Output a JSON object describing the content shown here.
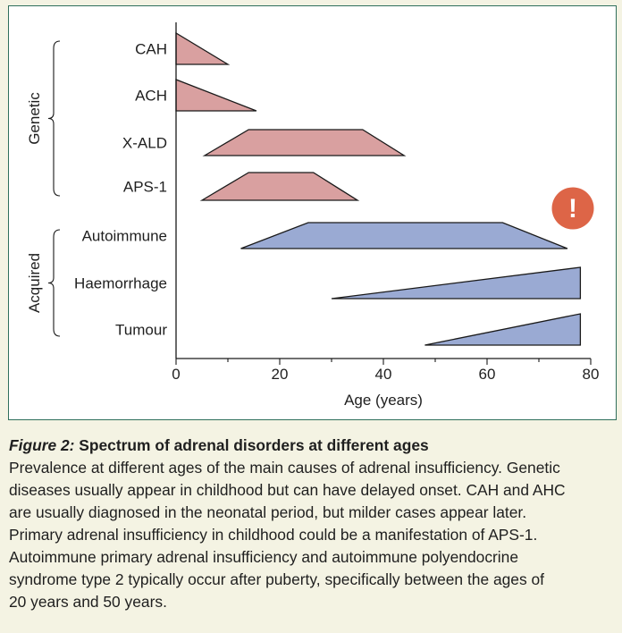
{
  "chart_data": {
    "type": "area",
    "title": "Spectrum of adrenal disorders at different ages",
    "xlabel": "Age (years)",
    "ylabel": "",
    "xlim": [
      0,
      80
    ],
    "xticks": [
      0,
      20,
      40,
      60,
      80
    ],
    "grid": false,
    "groups": [
      {
        "name": "Genetic",
        "series": [
          "CAH",
          "ACH",
          "X-ALD",
          "APS-1"
        ]
      },
      {
        "name": "Acquired",
        "series": [
          "Autoimmune",
          "Haemorrhage",
          "Tumour"
        ]
      }
    ],
    "series": [
      {
        "name": "CAH",
        "group": "Genetic",
        "onset": 0,
        "plateau_start": 0,
        "plateau_end": 0,
        "end": 10,
        "color": "#d9a0a0"
      },
      {
        "name": "ACH",
        "group": "Genetic",
        "onset": 0,
        "plateau_start": 0,
        "plateau_end": 0,
        "end": 15.5,
        "color": "#d9a0a0"
      },
      {
        "name": "X-ALD",
        "group": "Genetic",
        "onset": 5.5,
        "plateau_start": 14,
        "plateau_end": 36,
        "end": 44,
        "color": "#d9a0a0"
      },
      {
        "name": "APS-1",
        "group": "Genetic",
        "onset": 5,
        "plateau_start": 14,
        "plateau_end": 26.5,
        "end": 35,
        "color": "#d9a0a0"
      },
      {
        "name": "Autoimmune",
        "group": "Acquired",
        "onset": 12.5,
        "plateau_start": 25.5,
        "plateau_end": 63,
        "end": 75.5,
        "color": "#9aaad3"
      },
      {
        "name": "Haemorrhage",
        "group": "Acquired",
        "onset": 30,
        "plateau_start": 78,
        "plateau_end": 78,
        "end": 78,
        "color": "#9aaad3"
      },
      {
        "name": "Tumour",
        "group": "Acquired",
        "onset": 48,
        "plateau_start": 78,
        "plateau_end": 78,
        "end": 78,
        "color": "#9aaad3"
      }
    ],
    "annotations": [
      {
        "type": "alert-icon",
        "symbol": "!",
        "color": "#dd6547"
      }
    ]
  },
  "caption": {
    "figure_label": "Figure 2:",
    "title": "Spectrum of adrenal disorders at different ages",
    "lines": [
      "Prevalence at different ages of the main causes of adrenal insufficiency. Genetic",
      "diseases usually appear in childhood but can have delayed onset. CAH and AHC",
      "are usually diagnosed in the neonatal period, but milder cases appear later.",
      "Primary adrenal insufficiency in childhood could be a manifestation of APS-1.",
      "Autoimmune primary adrenal insufficiency and autoimmune polyendocrine",
      "syndrome type 2 typically occur after puberty, specifically between the ages of",
      "20 years and 50 years."
    ]
  }
}
